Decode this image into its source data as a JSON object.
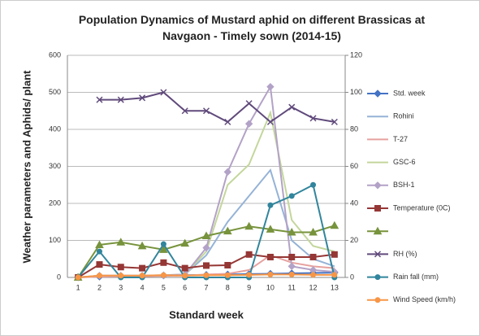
{
  "chart_data": {
    "type": "line",
    "title": "Population Dynamics of Mustard aphid on different Brassicas at Navgaon - Timely sown (2014-15)",
    "xlabel": "Standard week",
    "ylabel": "Weather parameters  and Aphids/ plant",
    "categories": [
      "1",
      "2",
      "3",
      "4",
      "5",
      "6",
      "7",
      "8",
      "9",
      "10",
      "11",
      "12",
      "13"
    ],
    "ylim": [
      0,
      600
    ],
    "yticks": [
      0,
      100,
      200,
      300,
      400,
      500,
      600
    ],
    "y2lim": [
      0,
      120
    ],
    "y2ticks": [
      0,
      20,
      40,
      60,
      80,
      100,
      120
    ],
    "grid": true,
    "legend": "right",
    "series": [
      {
        "name": "Std. week",
        "color": "#4472c4",
        "marker": "diamond",
        "values": [
          1,
          2,
          3,
          4,
          5,
          6,
          7,
          8,
          9,
          10,
          11,
          12,
          13
        ]
      },
      {
        "name": "Rohini",
        "color": "#95b3d7",
        "values": [
          0,
          3,
          3,
          4,
          5,
          8,
          60,
          150,
          220,
          290,
          100,
          50,
          30
        ]
      },
      {
        "name": "T-27",
        "color": "#e6a19e",
        "values": [
          0,
          2,
          3,
          3,
          4,
          5,
          8,
          10,
          20,
          60,
          40,
          30,
          25
        ]
      },
      {
        "name": "GSC-6",
        "color": "#c3d69b",
        "values": [
          0,
          5,
          5,
          5,
          6,
          8,
          70,
          250,
          305,
          445,
          155,
          85,
          70
        ]
      },
      {
        "name": "BSH-1",
        "color": "#b3a2c7",
        "marker": "diamond",
        "values": [
          0,
          5,
          5,
          5,
          6,
          8,
          80,
          285,
          415,
          515,
          30,
          20,
          15
        ]
      },
      {
        "name": "Temperature (0C)",
        "color": "#953735",
        "marker": "square",
        "values": [
          0,
          35,
          28,
          25,
          40,
          25,
          32,
          33,
          62,
          55,
          55,
          55,
          62
        ]
      },
      {
        "name": null,
        "color": "#77933c",
        "marker": "triangle",
        "values": [
          0,
          88,
          95,
          85,
          75,
          92,
          112,
          125,
          138,
          130,
          122,
          122,
          140
        ]
      },
      {
        "name": "RH (%)",
        "color": "#604a7b",
        "marker": "x",
        "axis": "y2",
        "values": [
          null,
          96,
          96,
          97,
          100,
          90,
          90,
          84,
          94,
          84,
          92,
          86,
          84
        ]
      },
      {
        "name": "Rain fall (mm)",
        "color": "#31859c",
        "marker": "circle",
        "axis": "y2",
        "values": [
          0,
          14,
          0,
          0,
          18,
          0,
          0,
          0,
          0,
          39,
          44,
          50,
          0
        ]
      },
      {
        "name": "Wind Speed (km/h)",
        "color": "#f79646",
        "marker": "circle",
        "values": [
          0,
          5,
          5,
          5,
          6,
          5,
          6,
          6,
          7,
          8,
          8,
          7,
          7
        ]
      }
    ]
  }
}
